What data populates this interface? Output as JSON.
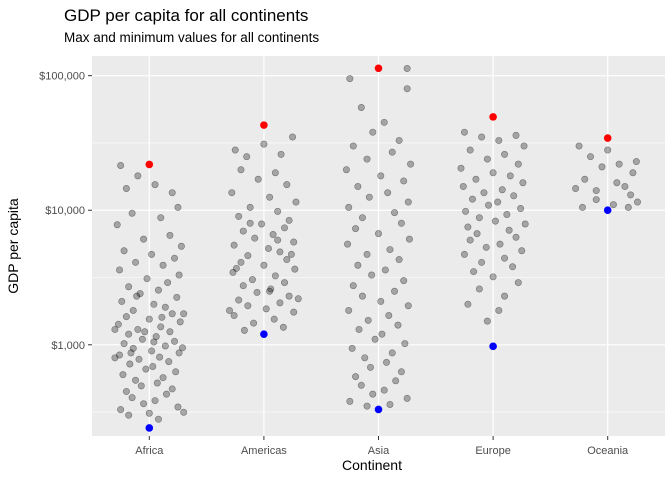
{
  "chart_data": {
    "type": "scatter",
    "title": "GDP per capita for all continents",
    "subtitle": "Max and minimum values for all continents",
    "xlabel": "Continent",
    "ylabel": "GDP per capita",
    "categories": [
      "Africa",
      "Americas",
      "Asia",
      "Europe",
      "Oceania"
    ],
    "y_scale": "log10",
    "ylim": [
      210,
      140000
    ],
    "y_ticks": [
      1000,
      10000,
      100000
    ],
    "y_tick_labels": [
      "$1,000",
      "$10,000",
      "$100,000"
    ],
    "grid": true,
    "background": "#ebebeb",
    "point_color": "#000000",
    "point_alpha": 0.3,
    "max_color": "#ff0000",
    "min_color": "#0000ff",
    "jitter_points": {
      "Africa": [
        [
          -0.25,
          21500
        ],
        [
          -0.2,
          14500
        ],
        [
          -0.1,
          18000
        ],
        [
          0.05,
          15500
        ],
        [
          0.2,
          13500
        ],
        [
          0.25,
          10500
        ],
        [
          -0.15,
          9500
        ],
        [
          0.1,
          8800
        ],
        [
          -0.28,
          7800
        ],
        [
          0.18,
          6500
        ],
        [
          -0.05,
          6100
        ],
        [
          0.28,
          5400
        ],
        [
          -0.22,
          5000
        ],
        [
          0.02,
          4700
        ],
        [
          0.22,
          4400
        ],
        [
          -0.12,
          4100
        ],
        [
          0.12,
          3900
        ],
        [
          -0.26,
          3600
        ],
        [
          0.26,
          3300
        ],
        [
          -0.02,
          3100
        ],
        [
          0.16,
          2900
        ],
        [
          -0.18,
          2700
        ],
        [
          0.08,
          2550
        ],
        [
          -0.08,
          2400
        ],
        [
          0.24,
          2250
        ],
        [
          -0.24,
          2100
        ],
        [
          0.04,
          2000
        ],
        [
          0.14,
          1900
        ],
        [
          -0.14,
          1800
        ],
        [
          0.2,
          1700
        ],
        [
          -0.2,
          1620
        ],
        [
          0.0,
          1550
        ],
        [
          0.27,
          1480
        ],
        [
          -0.27,
          1420
        ],
        [
          0.1,
          1360
        ],
        [
          -0.1,
          1300
        ],
        [
          0.18,
          1250
        ],
        [
          -0.18,
          1200
        ],
        [
          0.06,
          1150
        ],
        [
          -0.06,
          1100
        ],
        [
          0.22,
          1060
        ],
        [
          -0.22,
          1020
        ],
        [
          0.14,
          980
        ],
        [
          -0.14,
          940
        ],
        [
          0.02,
          900
        ],
        [
          0.26,
          870
        ],
        [
          -0.26,
          840
        ],
        [
          0.09,
          810
        ],
        [
          -0.09,
          780
        ],
        [
          0.17,
          750
        ],
        [
          -0.17,
          720
        ],
        [
          0.03,
          690
        ],
        [
          -0.03,
          660
        ],
        [
          0.23,
          630
        ],
        [
          -0.23,
          600
        ],
        [
          0.12,
          570
        ],
        [
          -0.12,
          545
        ],
        [
          0.07,
          520
        ],
        [
          -0.07,
          495
        ],
        [
          0.2,
          470
        ],
        [
          -0.2,
          450
        ],
        [
          0.15,
          430
        ],
        [
          -0.15,
          405
        ],
        [
          0.05,
          385
        ],
        [
          -0.05,
          365
        ],
        [
          0.25,
          345
        ],
        [
          -0.25,
          330
        ],
        [
          0.0,
          310
        ],
        [
          0.3,
          315
        ],
        [
          -0.18,
          300
        ],
        [
          0.08,
          280
        ],
        [
          -0.3,
          1300
        ],
        [
          0.3,
          1700
        ],
        [
          -0.3,
          800
        ],
        [
          0.29,
          950
        ],
        [
          -0.11,
          2300
        ],
        [
          0.11,
          1600
        ],
        [
          -0.04,
          1250
        ],
        [
          0.04,
          1050
        ],
        [
          -0.16,
          870
        ]
      ],
      "Americas": [
        [
          -0.25,
          28000
        ],
        [
          -0.15,
          25000
        ],
        [
          0.0,
          31000
        ],
        [
          0.15,
          26000
        ],
        [
          0.25,
          35000
        ],
        [
          -0.2,
          20000
        ],
        [
          0.1,
          19000
        ],
        [
          -0.05,
          17000
        ],
        [
          0.2,
          15500
        ],
        [
          -0.28,
          13500
        ],
        [
          0.05,
          12500
        ],
        [
          0.28,
          11500
        ],
        [
          -0.12,
          10500
        ],
        [
          0.12,
          9800
        ],
        [
          -0.22,
          9000
        ],
        [
          0.22,
          8400
        ],
        [
          -0.02,
          7900
        ],
        [
          0.18,
          7400
        ],
        [
          -0.18,
          7000
        ],
        [
          0.08,
          6600
        ],
        [
          -0.08,
          6200
        ],
        [
          0.26,
          5800
        ],
        [
          -0.26,
          5500
        ],
        [
          0.04,
          5200
        ],
        [
          0.14,
          4900
        ],
        [
          -0.14,
          4600
        ],
        [
          0.2,
          4300
        ],
        [
          -0.2,
          4100
        ],
        [
          0.0,
          3900
        ],
        [
          0.27,
          3650
        ],
        [
          -0.27,
          3450
        ],
        [
          0.1,
          3250
        ],
        [
          -0.1,
          3050
        ],
        [
          0.18,
          2900
        ],
        [
          -0.18,
          2750
        ],
        [
          0.06,
          2600
        ],
        [
          -0.06,
          2450
        ],
        [
          0.22,
          2300
        ],
        [
          -0.22,
          2150
        ],
        [
          0.14,
          2050
        ],
        [
          -0.14,
          1950
        ],
        [
          0.02,
          1850
        ],
        [
          0.26,
          1750
        ],
        [
          -0.26,
          1650
        ],
        [
          0.09,
          1550
        ],
        [
          -0.09,
          1450
        ],
        [
          0.17,
          1350
        ],
        [
          -0.17,
          1280
        ],
        [
          0.3,
          2200
        ],
        [
          -0.3,
          1800
        ],
        [
          0.12,
          6000
        ],
        [
          -0.12,
          8000
        ],
        [
          0.24,
          4700
        ],
        [
          -0.24,
          3700
        ],
        [
          0.05,
          2500
        ]
      ],
      "Asia": [
        [
          -0.25,
          95000
        ],
        [
          0.25,
          113000
        ],
        [
          0.25,
          80000
        ],
        [
          -0.15,
          58000
        ],
        [
          0.05,
          45000
        ],
        [
          -0.05,
          38000
        ],
        [
          0.18,
          33000
        ],
        [
          -0.22,
          30000
        ],
        [
          0.12,
          27000
        ],
        [
          -0.1,
          24000
        ],
        [
          0.28,
          22000
        ],
        [
          -0.28,
          20000
        ],
        [
          0.02,
          18000
        ],
        [
          0.22,
          16500
        ],
        [
          -0.18,
          15000
        ],
        [
          0.08,
          13500
        ],
        [
          -0.08,
          12500
        ],
        [
          0.26,
          11500
        ],
        [
          -0.26,
          10500
        ],
        [
          0.14,
          9600
        ],
        [
          -0.14,
          8800
        ],
        [
          0.2,
          8000
        ],
        [
          -0.2,
          7300
        ],
        [
          0.0,
          6700
        ],
        [
          0.27,
          6100
        ],
        [
          -0.27,
          5600
        ],
        [
          0.1,
          5100
        ],
        [
          -0.1,
          4700
        ],
        [
          0.18,
          4300
        ],
        [
          -0.18,
          3900
        ],
        [
          0.06,
          3600
        ],
        [
          -0.06,
          3300
        ],
        [
          0.22,
          3000
        ],
        [
          -0.22,
          2750
        ],
        [
          0.14,
          2500
        ],
        [
          -0.14,
          2300
        ],
        [
          0.02,
          2100
        ],
        [
          0.26,
          1950
        ],
        [
          -0.26,
          1800
        ],
        [
          0.09,
          1650
        ],
        [
          -0.09,
          1520
        ],
        [
          0.17,
          1400
        ],
        [
          -0.17,
          1300
        ],
        [
          0.03,
          1200
        ],
        [
          -0.03,
          1100
        ],
        [
          0.23,
          1020
        ],
        [
          -0.23,
          940
        ],
        [
          0.12,
          870
        ],
        [
          -0.12,
          800
        ],
        [
          0.07,
          740
        ],
        [
          -0.07,
          680
        ],
        [
          0.2,
          630
        ],
        [
          -0.2,
          580
        ],
        [
          0.15,
          540
        ],
        [
          -0.15,
          500
        ],
        [
          0.05,
          460
        ],
        [
          -0.05,
          430
        ],
        [
          0.25,
          400
        ],
        [
          -0.25,
          380
        ],
        [
          0.1,
          360
        ],
        [
          -0.1,
          350
        ]
      ],
      "Europe": [
        [
          -0.25,
          38000
        ],
        [
          -0.1,
          35000
        ],
        [
          0.05,
          33000
        ],
        [
          0.2,
          36000
        ],
        [
          0.27,
          30000
        ],
        [
          -0.2,
          28000
        ],
        [
          0.1,
          26000
        ],
        [
          -0.05,
          24000
        ],
        [
          0.22,
          22000
        ],
        [
          -0.28,
          20500
        ],
        [
          0.0,
          19000
        ],
        [
          0.15,
          18000
        ],
        [
          -0.15,
          17000
        ],
        [
          0.26,
          16000
        ],
        [
          -0.26,
          15000
        ],
        [
          0.08,
          14200
        ],
        [
          -0.08,
          13500
        ],
        [
          0.18,
          12800
        ],
        [
          -0.18,
          12100
        ],
        [
          0.04,
          11500
        ],
        [
          -0.04,
          10900
        ],
        [
          0.24,
          10300
        ],
        [
          -0.24,
          9800
        ],
        [
          0.12,
          9300
        ],
        [
          -0.12,
          8800
        ],
        [
          0.02,
          8300
        ],
        [
          0.28,
          7900
        ],
        [
          -0.22,
          7500
        ],
        [
          0.14,
          7100
        ],
        [
          -0.14,
          6700
        ],
        [
          0.2,
          6300
        ],
        [
          -0.2,
          6000
        ],
        [
          0.06,
          5600
        ],
        [
          -0.06,
          5300
        ],
        [
          0.25,
          5000
        ],
        [
          -0.25,
          4700
        ],
        [
          0.1,
          4400
        ],
        [
          -0.1,
          4100
        ],
        [
          0.17,
          3800
        ],
        [
          -0.17,
          3500
        ],
        [
          0.0,
          3200
        ],
        [
          0.22,
          2900
        ],
        [
          -0.12,
          2600
        ],
        [
          0.1,
          2300
        ],
        [
          -0.22,
          2000
        ],
        [
          0.05,
          1800
        ],
        [
          -0.05,
          1500
        ]
      ],
      "Oceania": [
        [
          -0.25,
          30000
        ],
        [
          -0.15,
          25000
        ],
        [
          0.0,
          28000
        ],
        [
          0.1,
          22000
        ],
        [
          0.25,
          23000
        ],
        [
          -0.05,
          21000
        ],
        [
          0.22,
          19000
        ],
        [
          -0.2,
          17000
        ],
        [
          0.08,
          16000
        ],
        [
          0.15,
          15000
        ],
        [
          -0.28,
          14500
        ],
        [
          0.2,
          13000
        ],
        [
          -0.1,
          12000
        ],
        [
          0.26,
          11500
        ],
        [
          0.05,
          11000
        ],
        [
          -0.22,
          10500
        ],
        [
          0.18,
          10500
        ],
        [
          -0.1,
          14000
        ]
      ]
    },
    "highlight_points": [
      {
        "category": "Africa",
        "kind": "max",
        "y": 21900,
        "jitter": 0.0
      },
      {
        "category": "Africa",
        "kind": "min",
        "y": 241,
        "jitter": 0.0
      },
      {
        "category": "Americas",
        "kind": "max",
        "y": 42900,
        "jitter": 0.0
      },
      {
        "category": "Americas",
        "kind": "min",
        "y": 1200,
        "jitter": 0.0
      },
      {
        "category": "Asia",
        "kind": "max",
        "y": 113500,
        "jitter": 0.0
      },
      {
        "category": "Asia",
        "kind": "min",
        "y": 331,
        "jitter": 0.0
      },
      {
        "category": "Europe",
        "kind": "max",
        "y": 49400,
        "jitter": 0.0
      },
      {
        "category": "Europe",
        "kind": "min",
        "y": 974,
        "jitter": 0.0
      },
      {
        "category": "Oceania",
        "kind": "max",
        "y": 34400,
        "jitter": 0.0
      },
      {
        "category": "Oceania",
        "kind": "min",
        "y": 10000,
        "jitter": 0.0
      }
    ]
  }
}
